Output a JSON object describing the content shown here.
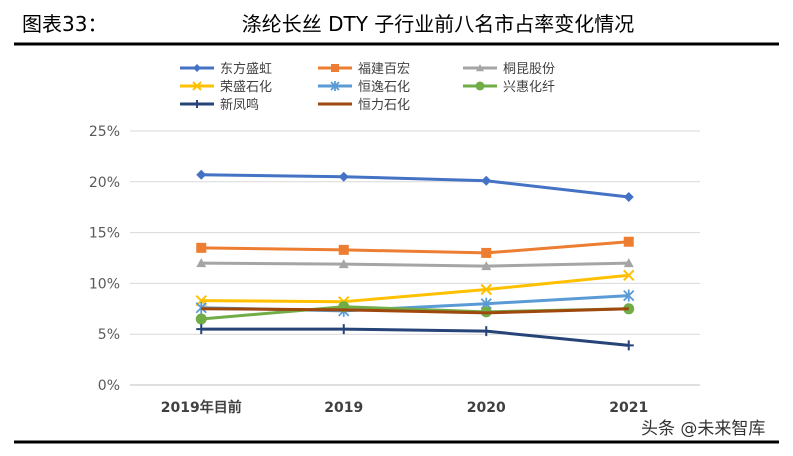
{
  "figure": {
    "label": "图表33：",
    "title": "涤纶长丝 DTY 子行业前八名市占率变化情况",
    "watermark": "头条 @未来智库"
  },
  "chart_data": {
    "type": "line",
    "title": "涤纶长丝 DTY 子行业前八名市占率变化情况",
    "categories": [
      "2019年目前",
      "2019",
      "2020",
      "2021"
    ],
    "ylim": [
      0,
      25
    ],
    "yticks": [
      0,
      5,
      10,
      15,
      20,
      25
    ],
    "ytick_labels": [
      "0%",
      "5%",
      "10%",
      "15%",
      "20%",
      "25%"
    ],
    "grid": "horizontal",
    "legend_position": "top",
    "series": [
      {
        "name": "东方盛虹",
        "values": [
          20.7,
          20.5,
          20.1,
          18.5
        ],
        "color": "#4472c4",
        "marker": "diamond"
      },
      {
        "name": "福建百宏",
        "values": [
          13.5,
          13.3,
          13.0,
          14.1
        ],
        "color": "#ed7d31",
        "marker": "square"
      },
      {
        "name": "桐昆股份",
        "values": [
          12.0,
          11.9,
          11.7,
          12.0
        ],
        "color": "#a5a5a5",
        "marker": "triangle"
      },
      {
        "name": "荣盛石化",
        "values": [
          8.3,
          8.2,
          9.4,
          10.8
        ],
        "color": "#ffc000",
        "marker": "x"
      },
      {
        "name": "恒逸石化",
        "values": [
          7.6,
          7.3,
          8.0,
          8.8
        ],
        "color": "#5b9bd5",
        "marker": "star"
      },
      {
        "name": "兴惠化纤",
        "values": [
          6.5,
          7.7,
          7.2,
          7.5
        ],
        "color": "#70ad47",
        "marker": "circle"
      },
      {
        "name": "新凤鸣",
        "values": [
          5.5,
          5.5,
          5.3,
          3.9
        ],
        "color": "#264478",
        "marker": "plus"
      },
      {
        "name": "恒力石化",
        "values": [
          7.5,
          7.4,
          7.1,
          7.5
        ],
        "color": "#9e480e",
        "marker": "none"
      }
    ]
  }
}
